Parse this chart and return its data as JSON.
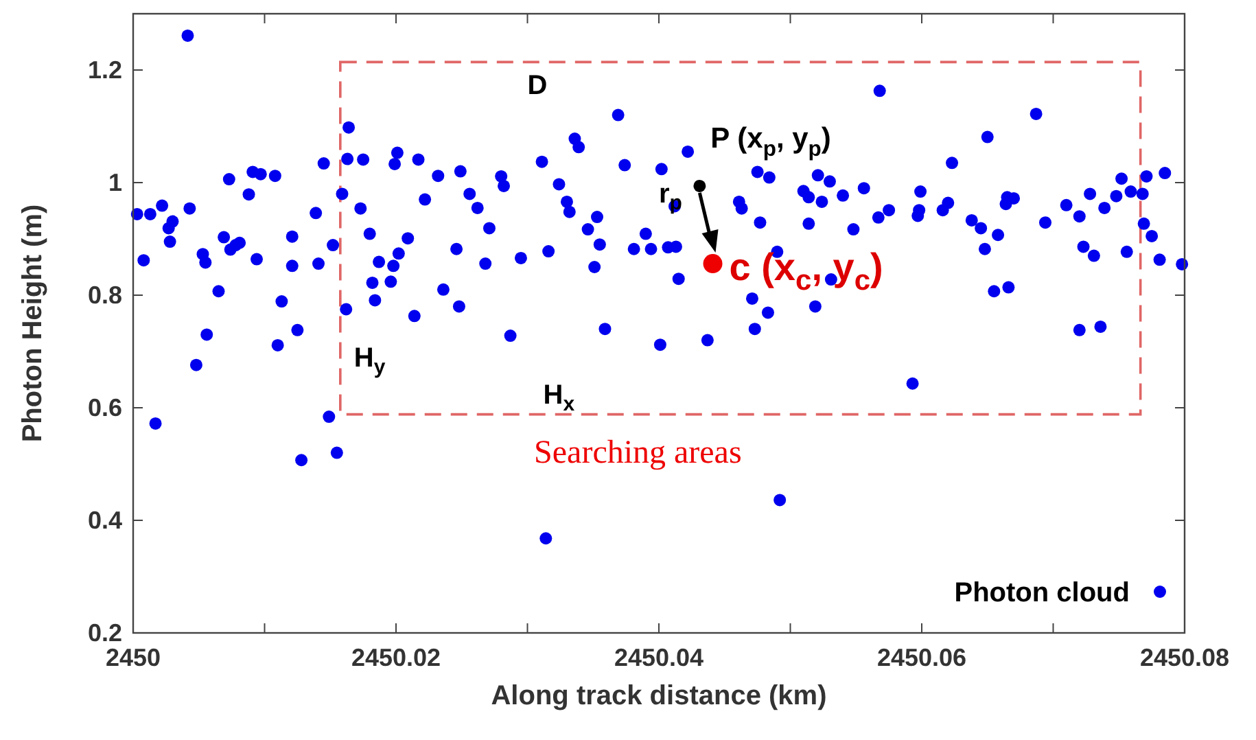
{
  "chart_data": {
    "type": "scatter",
    "xlabel": "Along track distance (km)",
    "ylabel": "Photon Height (m)",
    "xlim": [
      2450,
      2450.08
    ],
    "ylim": [
      0.2,
      1.3
    ],
    "xticks": [
      2450,
      {
        "value": 2450.01,
        "label": null
      },
      {
        "value": 2450.02,
        "label": "2450.02"
      },
      {
        "value": 2450.03,
        "label": null
      },
      {
        "value": 2450.04,
        "label": "2450.04"
      },
      {
        "value": 2450.05,
        "label": null
      },
      {
        "value": 2450.06,
        "label": "2450.06"
      },
      {
        "value": 2450.07,
        "label": null
      },
      {
        "value": 2450.08,
        "label": "2450.08"
      }
    ],
    "yticks": [
      0.2,
      0.4,
      0.6,
      0.8,
      1,
      1.2
    ],
    "grid": false,
    "legend": "bottom right",
    "marker": "circle",
    "series": [
      {
        "name": "Photon cloud",
        "color": "#0000ee",
        "x": [
          2450.00415,
          2450.0003,
          2450.0013,
          2450.0022,
          2450.0043,
          2450.003,
          2450.0027,
          2450.0028,
          2450.0008,
          2450.0017,
          2450.0048,
          2450.0056,
          2450.0065,
          2450.0053,
          2450.0055,
          2450.0073,
          2450.0088,
          2450.0091,
          2450.0097,
          2450.0108,
          2450.0069,
          2450.0074,
          2450.0081,
          2450.0078,
          2450.0094,
          2450.0113,
          2450.011,
          2450.0125,
          2450.0128,
          2450.0121,
          2450.0121,
          2450.0139,
          2450.0141,
          2450.0145,
          2450.0152,
          2450.0149,
          2450.0155,
          2450.0159,
          2450.0164,
          2450.0163,
          2450.0175,
          2450.0173,
          2450.018,
          2450.0162,
          2450.0187,
          2450.0182,
          2450.0184,
          2450.0196,
          2450.0198,
          2450.0202,
          2450.0209,
          2450.0201,
          2450.0199,
          2450.0217,
          2450.0222,
          2450.0232,
          2450.0214,
          2450.0236,
          2450.0248,
          2450.0246,
          2450.0249,
          2450.0256,
          2450.0262,
          2450.0271,
          2450.0268,
          2450.0369,
          2450.0336,
          2450.0339,
          2450.0311,
          2450.0374,
          2450.028,
          2450.0282,
          2450.0324,
          2450.033,
          2450.0332,
          2450.0353,
          2450.0346,
          2450.0355,
          2450.0351,
          2450.0295,
          2450.0316,
          2450.0287,
          2450.0359,
          2450.039,
          2450.0381,
          2450.0394,
          2450.0407,
          2450.0413,
          2450.0402,
          2450.0412,
          2450.0422,
          2450.0415,
          2450.0401,
          2450.0437,
          2450.0314,
          2450.0492,
          2450.0461,
          2450.0463,
          2450.0477,
          2450.0475,
          2450.0484,
          2450.049,
          2450.0471,
          2450.0483,
          2450.0473,
          2450.051,
          2450.0514,
          2450.0521,
          2450.053,
          2450.0524,
          2450.0514,
          2450.054,
          2450.0548,
          2450.0556,
          2450.0531,
          2450.0519,
          2450.0568,
          2450.0567,
          2450.0575,
          2450.0597,
          2450.0598,
          2450.0599,
          2450.0616,
          2450.062,
          2450.0623,
          2450.065,
          2450.0638,
          2450.0645,
          2450.0658,
          2450.0648,
          2450.0665,
          2450.067,
          2450.0664,
          2450.0655,
          2450.0666,
          2450.0593,
          2450.0687,
          2450.0694,
          2450.071,
          2450.072,
          2450.0728,
          2450.0739,
          2450.0748,
          2450.0752,
          2450.0759,
          2450.0768,
          2450.0771,
          2450.0785,
          2450.0723,
          2450.0731,
          2450.0756,
          2450.0769,
          2450.0775,
          2450.0781,
          2450.0798,
          2450.072,
          2450.0736
        ],
        "values": [
          1.261,
          0.944,
          0.944,
          0.959,
          0.954,
          0.931,
          0.919,
          0.895,
          0.862,
          0.572,
          0.676,
          0.73,
          0.807,
          0.873,
          0.858,
          1.006,
          0.979,
          1.019,
          1.015,
          1.012,
          0.903,
          0.881,
          0.893,
          0.889,
          0.864,
          0.789,
          0.711,
          0.738,
          0.507,
          0.904,
          0.852,
          0.946,
          0.856,
          1.034,
          0.889,
          0.584,
          0.52,
          0.98,
          1.098,
          1.042,
          1.041,
          0.954,
          0.909,
          0.775,
          0.859,
          0.822,
          0.791,
          0.824,
          0.852,
          0.874,
          0.901,
          1.053,
          1.033,
          1.041,
          0.97,
          1.012,
          0.763,
          0.81,
          0.78,
          0.882,
          1.02,
          0.98,
          0.955,
          0.919,
          0.856,
          1.12,
          1.078,
          1.063,
          1.037,
          1.031,
          1.011,
          0.994,
          0.997,
          0.966,
          0.948,
          0.939,
          0.917,
          0.89,
          0.85,
          0.866,
          0.878,
          0.728,
          0.74,
          0.909,
          0.882,
          0.882,
          0.885,
          0.886,
          1.024,
          0.958,
          1.055,
          0.829,
          0.712,
          0.72,
          0.368,
          0.436,
          0.966,
          0.954,
          0.929,
          1.019,
          1.009,
          0.877,
          0.794,
          0.769,
          0.74,
          0.985,
          0.974,
          1.013,
          1.002,
          0.966,
          0.927,
          0.977,
          0.917,
          0.99,
          0.828,
          0.78,
          1.163,
          0.938,
          0.951,
          0.941,
          0.951,
          0.984,
          0.951,
          0.964,
          1.035,
          1.081,
          0.933,
          0.919,
          0.907,
          0.882,
          0.974,
          0.972,
          0.962,
          0.807,
          0.814,
          0.643,
          1.122,
          0.929,
          0.96,
          0.94,
          0.98,
          0.955,
          0.976,
          1.007,
          0.984,
          0.98,
          1.011,
          1.017,
          0.886,
          0.87,
          0.877,
          0.927,
          0.905,
          0.863,
          0.855,
          0.738,
          0.744
        ]
      },
      {
        "color": "#000000",
        "x": [
          2450.0431
        ],
        "values": [
          0.994
        ]
      },
      {
        "color": "#ee0000",
        "x": [
          2450.0441
        ],
        "values": [
          0.856
        ]
      }
    ],
    "annotations": [
      {
        "text": "P (x$_{p}$, y$_{p}$)",
        "x": 2450.0431,
        "y": 0.994
      },
      {
        "text": "c (x$_{c}$, y$_{c}$)",
        "x": 2450.0441,
        "y": 0.856
      },
      "r$_{p}$",
      "D",
      "H$_{y}$",
      "H$_{x}$",
      "Searching areas"
    ]
  }
}
